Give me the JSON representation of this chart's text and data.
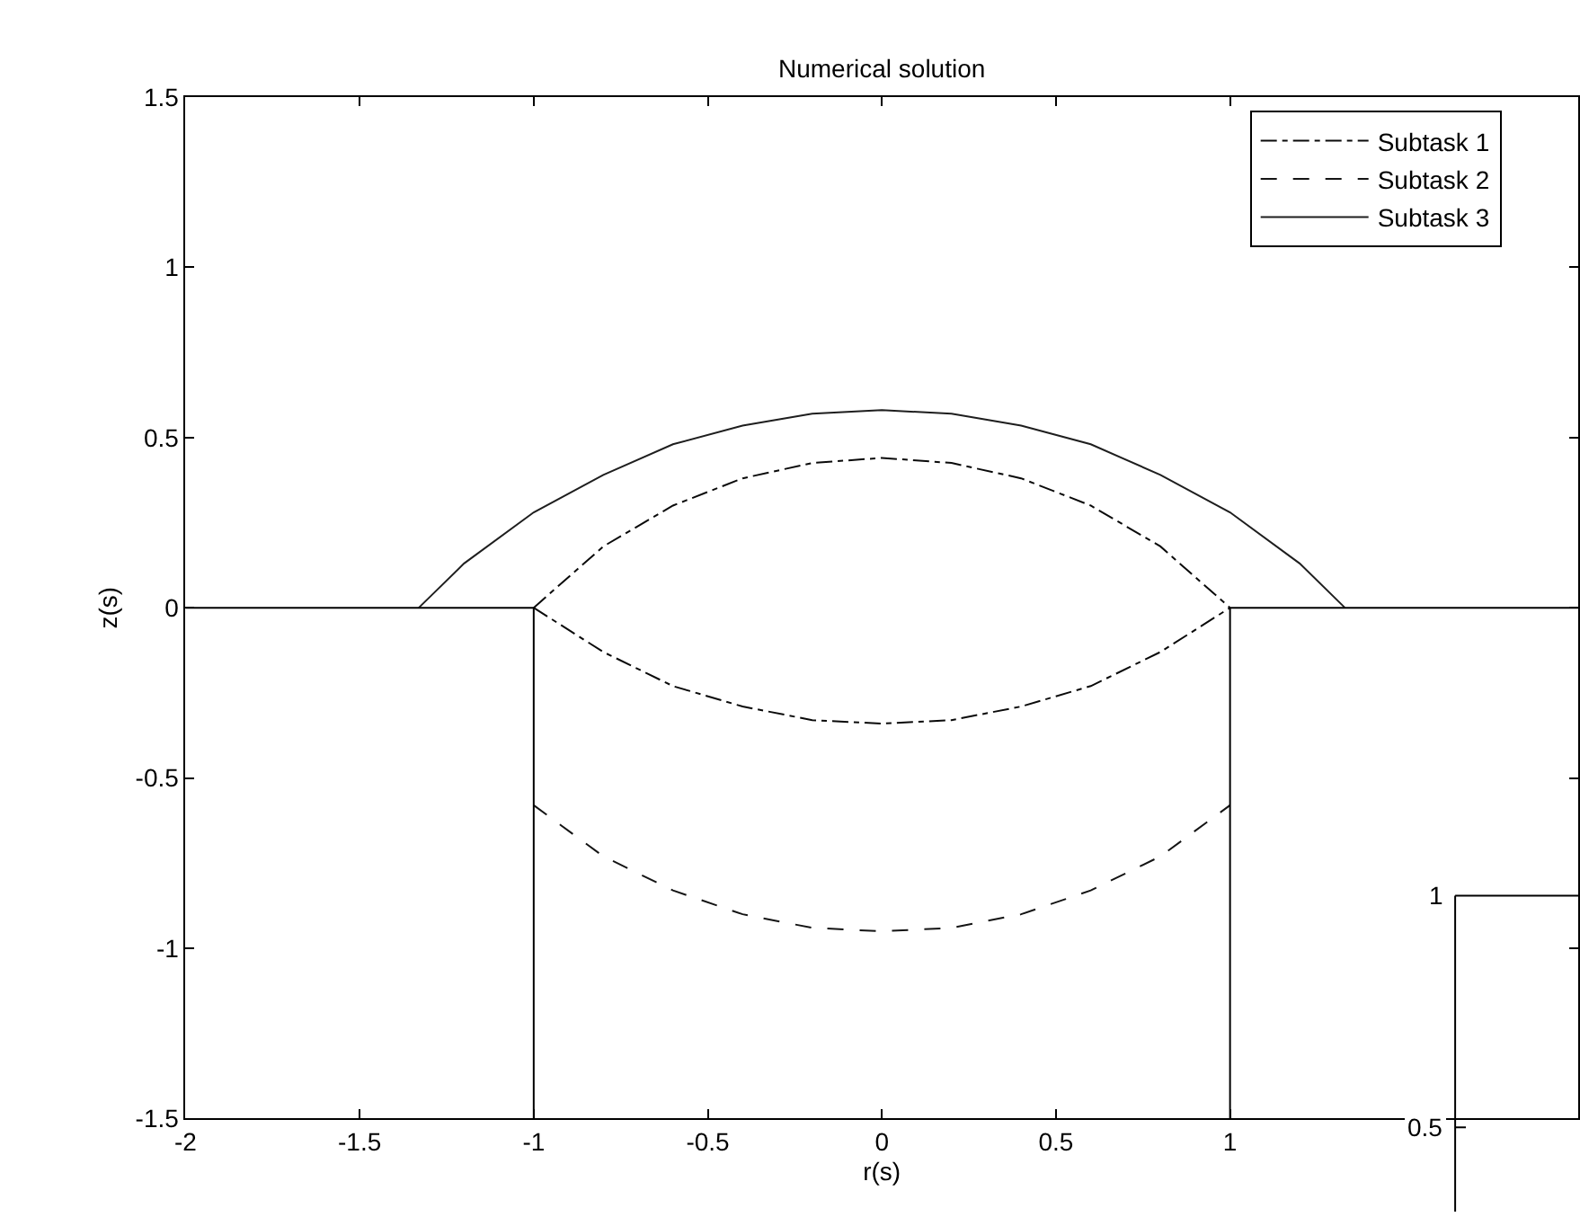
{
  "chart_data": [
    {
      "type": "line",
      "title": "Numerical solution",
      "xlabel": "r(s)",
      "ylabel": "z(s)",
      "xlim": [
        -2,
        2
      ],
      "ylim": [
        -1.5,
        1.5
      ],
      "xticks": [
        -2,
        -1.5,
        -1,
        -0.5,
        0,
        0.5,
        1
      ],
      "yticks": [
        -1.5,
        -1,
        -0.5,
        0,
        0.5,
        1,
        1.5
      ],
      "legend": "top right",
      "marker": "none",
      "series": [
        {
          "name": "Subtask 1",
          "color": "#0a0a0a",
          "line_style": "dashdot",
          "x": [
            -1,
            -0.8,
            -0.6,
            -0.4,
            -0.2,
            0,
            0.2,
            0.4,
            0.6,
            0.8,
            1,
            null,
            -1,
            -0.8,
            -0.6,
            -0.4,
            -0.2,
            0,
            0.2,
            0.4,
            0.6,
            0.8,
            1
          ],
          "values": [
            0,
            0.18,
            0.3,
            0.38,
            0.425,
            0.44,
            0.425,
            0.38,
            0.3,
            0.18,
            0,
            null,
            0,
            -0.13,
            -0.23,
            -0.29,
            -0.33,
            -0.34,
            -0.33,
            -0.29,
            -0.23,
            -0.13,
            0
          ]
        },
        {
          "name": "Subtask 2",
          "color": "#141414",
          "line_style": "dashed",
          "x": [
            -1,
            -0.8,
            -0.6,
            -0.4,
            -0.2,
            0,
            0.2,
            0.4,
            0.6,
            0.8,
            1
          ],
          "values": [
            -0.58,
            -0.73,
            -0.83,
            -0.9,
            -0.94,
            -0.95,
            -0.94,
            -0.9,
            -0.83,
            -0.73,
            -0.58
          ]
        },
        {
          "name": "Subtask 3",
          "color": "#1e1e1e",
          "line_style": "solid",
          "x": [
            -1.33,
            -1.2,
            -1,
            -0.8,
            -0.6,
            -0.4,
            -0.2,
            0,
            0.2,
            0.4,
            0.6,
            0.8,
            1,
            1.2,
            1.33
          ],
          "values": [
            0,
            0.13,
            0.28,
            0.39,
            0.48,
            0.535,
            0.57,
            0.58,
            0.57,
            0.535,
            0.48,
            0.39,
            0.28,
            0.13,
            0
          ]
        },
        {
          "color": "#000000",
          "line_style": "solid",
          "x": [
            -2,
            -1,
            -1,
            null,
            1,
            1,
            2
          ],
          "values": [
            0,
            0,
            -1.5,
            null,
            -1.5,
            0,
            0
          ]
        }
      ]
    },
    {
      "type": "other",
      "annotations": [
        "1",
        "0.5"
      ]
    }
  ]
}
